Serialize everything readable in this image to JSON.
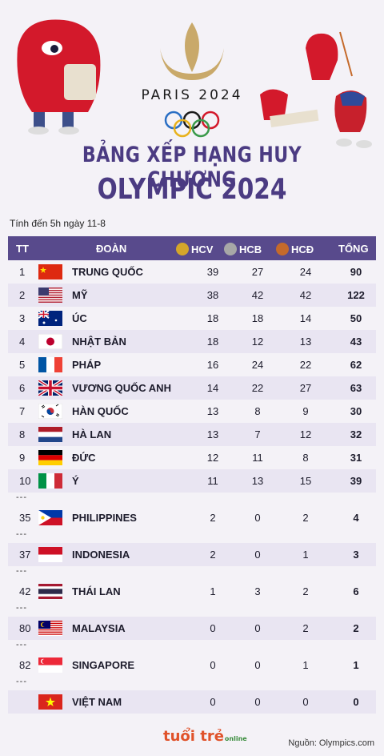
{
  "header": {
    "paris_label": "PARIS 2024",
    "title_line1": "BẢNG XẾP HẠNG HUY CHƯƠNG",
    "title_line2": "OLYMPIC 2024",
    "as_of": "Tính đến 5h ngày 11-8"
  },
  "colors": {
    "header_bg": "#584a8c",
    "title": "#4b3b82",
    "gold": "#d4a62a",
    "silver": "#a7a7a7",
    "bronze": "#c56a2b"
  },
  "columns": {
    "rank": "TT",
    "team": "ĐOÀN",
    "gold": "HCV",
    "silver": "HCB",
    "bronze": "HCĐ",
    "total": "TỔNG"
  },
  "rows": [
    {
      "rank": "1",
      "team": "TRUNG QUỐC",
      "gold": "39",
      "silver": "27",
      "bronze": "24",
      "total": "90",
      "flag": "cn"
    },
    {
      "rank": "2",
      "team": "MỸ",
      "gold": "38",
      "silver": "42",
      "bronze": "42",
      "total": "122",
      "flag": "us"
    },
    {
      "rank": "3",
      "team": "ÚC",
      "gold": "18",
      "silver": "18",
      "bronze": "14",
      "total": "50",
      "flag": "au"
    },
    {
      "rank": "4",
      "team": "NHẬT BẢN",
      "gold": "18",
      "silver": "12",
      "bronze": "13",
      "total": "43",
      "flag": "jp"
    },
    {
      "rank": "5",
      "team": "PHÁP",
      "gold": "16",
      "silver": "24",
      "bronze": "22",
      "total": "62",
      "flag": "fr"
    },
    {
      "rank": "6",
      "team": "VƯƠNG QUỐC ANH",
      "gold": "14",
      "silver": "22",
      "bronze": "27",
      "total": "63",
      "flag": "gb"
    },
    {
      "rank": "7",
      "team": "HÀN QUỐC",
      "gold": "13",
      "silver": "8",
      "bronze": "9",
      "total": "30",
      "flag": "kr"
    },
    {
      "rank": "8",
      "team": "HÀ LAN",
      "gold": "13",
      "silver": "7",
      "bronze": "12",
      "total": "32",
      "flag": "nl"
    },
    {
      "rank": "9",
      "team": "ĐỨC",
      "gold": "12",
      "silver": "11",
      "bronze": "8",
      "total": "31",
      "flag": "de"
    },
    {
      "rank": "10",
      "team": "Ý",
      "gold": "11",
      "silver": "13",
      "bronze": "15",
      "total": "39",
      "flag": "it"
    }
  ],
  "separator": "---",
  "sea_rows": [
    {
      "rank": "35",
      "team": "PHILIPPINES",
      "gold": "2",
      "silver": "0",
      "bronze": "2",
      "total": "4",
      "flag": "ph"
    },
    {
      "rank": "37",
      "team": "INDONESIA",
      "gold": "2",
      "silver": "0",
      "bronze": "1",
      "total": "3",
      "flag": "id"
    },
    {
      "rank": "42",
      "team": "THÁI LAN",
      "gold": "1",
      "silver": "3",
      "bronze": "2",
      "total": "6",
      "flag": "th"
    },
    {
      "rank": "80",
      "team": "MALAYSIA",
      "gold": "0",
      "silver": "0",
      "bronze": "2",
      "total": "2",
      "flag": "my"
    },
    {
      "rank": "82",
      "team": "SINGAPORE",
      "gold": "0",
      "silver": "0",
      "bronze": "1",
      "total": "1",
      "flag": "sg"
    },
    {
      "rank": "",
      "team": "VIỆT NAM",
      "gold": "0",
      "silver": "0",
      "bronze": "0",
      "total": "0",
      "flag": "vn"
    }
  ],
  "footer": {
    "logo_text": "tuổi trẻ",
    "logo_sub": "online",
    "source": "Nguồn: Olympics.com"
  }
}
